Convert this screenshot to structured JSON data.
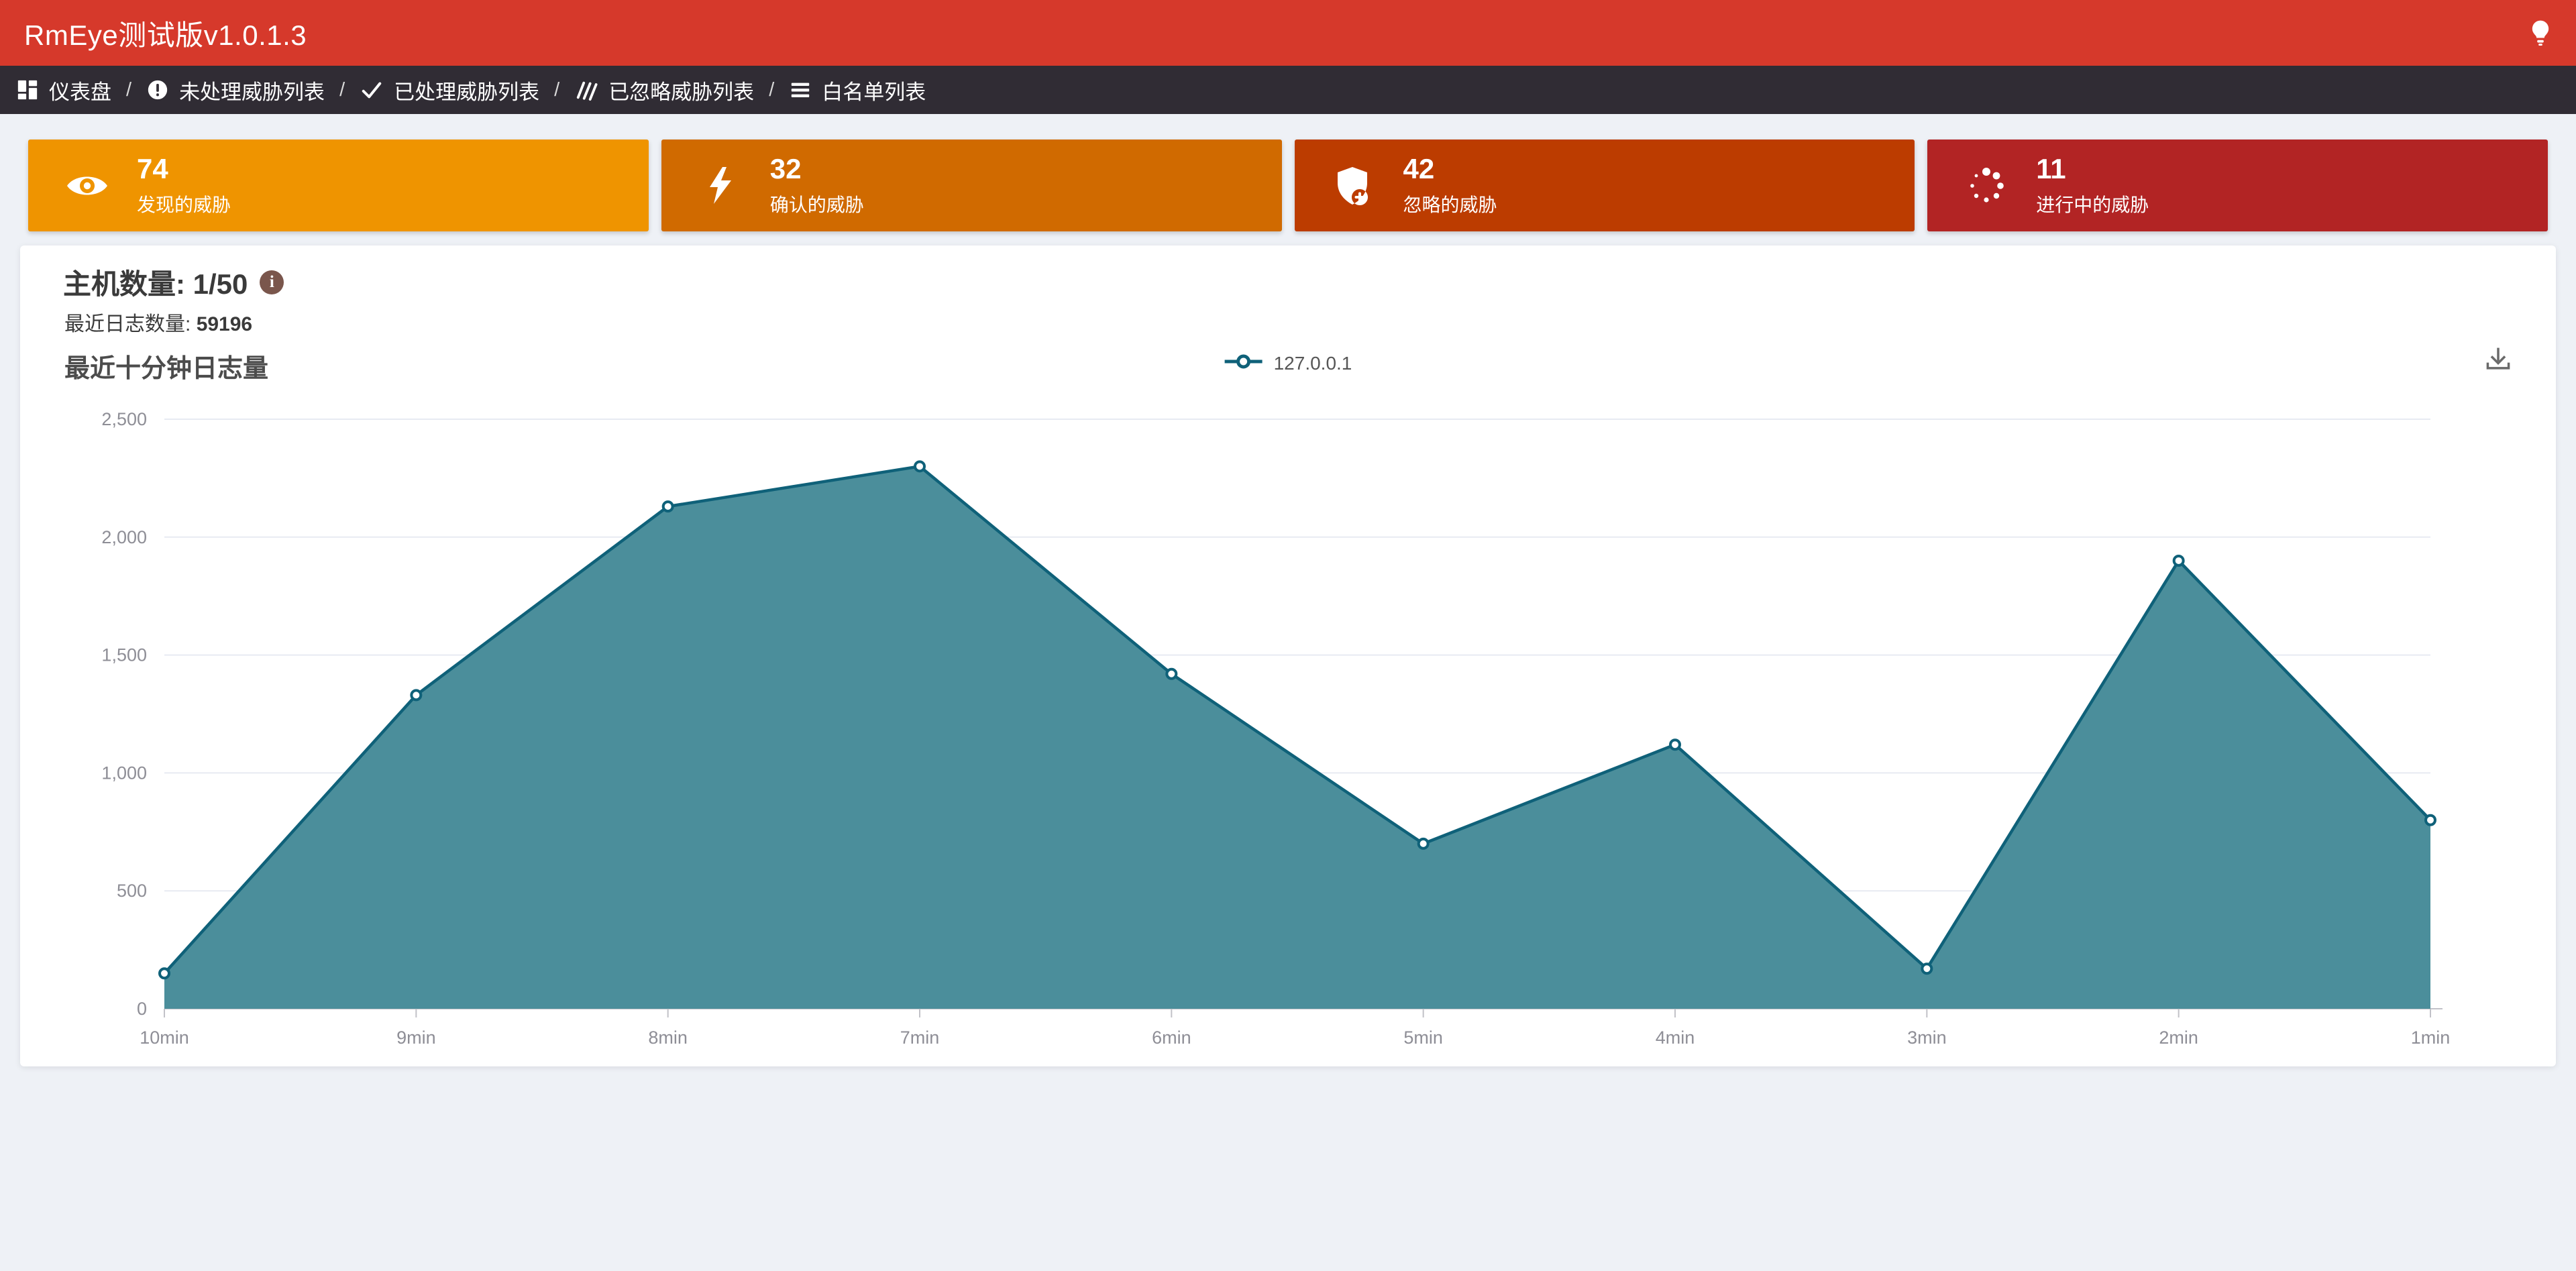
{
  "header": {
    "title": "RmEye测试版v1.0.1.3",
    "bg_color": "#d6392b",
    "icons": [
      "lightbulb-icon"
    ]
  },
  "navbar": {
    "bg_color": "#302c34",
    "separator": "/",
    "items": [
      {
        "label": "仪表盘",
        "icon": "dashboard-icon"
      },
      {
        "label": "未处理威胁列表",
        "icon": "exclamation-circle-icon"
      },
      {
        "label": "已处理威胁列表",
        "icon": "check-icon"
      },
      {
        "label": "已忽略威胁列表",
        "icon": "hatch-icon"
      },
      {
        "label": "白名单列表",
        "icon": "list-icon"
      }
    ]
  },
  "stat_cards": [
    {
      "value": "74",
      "label": "发现的威胁",
      "color": "#ef9400",
      "icon": "eye-icon"
    },
    {
      "value": "32",
      "label": "确认的威胁",
      "color": "#d06a00",
      "icon": "lightning-icon"
    },
    {
      "value": "42",
      "label": "忽略的威胁",
      "color": "#bc3c00",
      "icon": "shield-plus-icon"
    },
    {
      "value": "11",
      "label": "进行中的威胁",
      "color": "#b22424",
      "icon": "spinner-icon"
    }
  ],
  "panel": {
    "host_count_label": "主机数量: 1/50",
    "info_icon_glyph": "i",
    "recent_log_label": "最近日志数量:",
    "recent_log_value": "59196",
    "chart_title": "最近十分钟日志量",
    "legend": {
      "label": "127.0.0.1",
      "color": "#0f6179"
    }
  },
  "chart_data": {
    "type": "area",
    "title": "最近十分钟日志量",
    "categories": [
      "10min",
      "9min",
      "8min",
      "7min",
      "6min",
      "5min",
      "4min",
      "3min",
      "2min",
      "1min"
    ],
    "series": [
      {
        "name": "127.0.0.1",
        "values": [
          150,
          1330,
          2130,
          2300,
          1420,
          700,
          1120,
          170,
          1900,
          800
        ]
      }
    ],
    "ylim": [
      0,
      2500
    ],
    "yticks": [
      0,
      500,
      1000,
      1500,
      2000,
      2500
    ],
    "ytick_labels": [
      "0",
      "500",
      "1,000",
      "1,500",
      "2,000",
      "2,500"
    ],
    "grid": true,
    "legend_position": "top-center",
    "line_color": "#0f6179",
    "fill_color": "#4b8e9b",
    "marker": "circle",
    "axis_color": "#c2c2c8",
    "grid_color": "#e7eaf2",
    "tick_label_color": "#8e8e96"
  }
}
